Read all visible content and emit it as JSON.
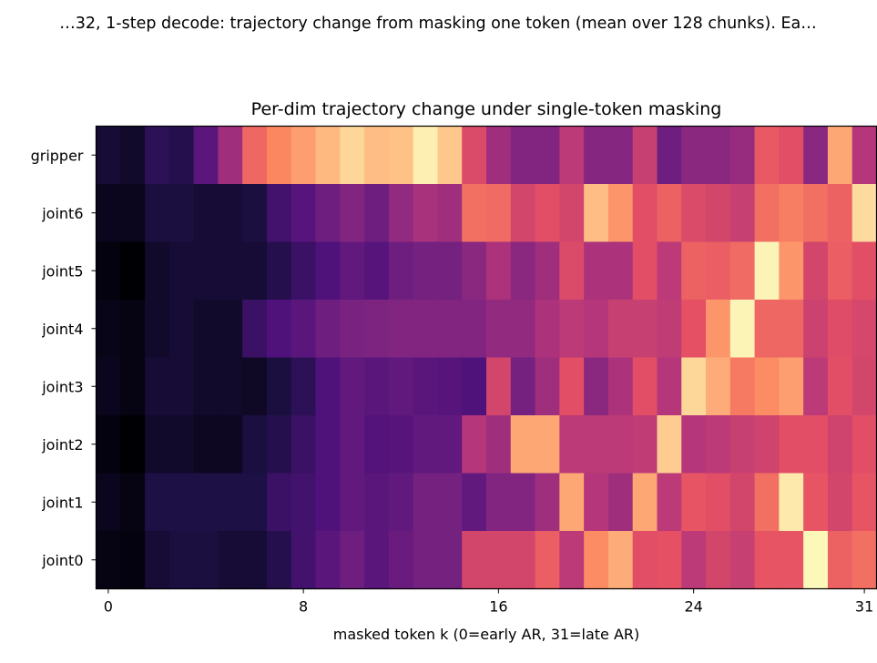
{
  "figure": {
    "suptitle": "…32, 1-step decode: trajectory change from masking one token (mean over 128 chunks). Ea…"
  },
  "chart_data": {
    "type": "heatmap",
    "title": "Per-dim trajectory change under single-token masking",
    "xlabel": "masked token k (0=early AR, 31=late AR)",
    "ylabel": "",
    "colormap": "magma",
    "value_range": [
      0,
      1
    ],
    "grid": false,
    "legend": "none",
    "x_categories": [
      0,
      1,
      2,
      3,
      4,
      5,
      6,
      7,
      8,
      9,
      10,
      11,
      12,
      13,
      14,
      15,
      16,
      17,
      18,
      19,
      20,
      21,
      22,
      23,
      24,
      25,
      26,
      27,
      28,
      29,
      30,
      31
    ],
    "x_ticks": [
      0,
      8,
      16,
      24,
      31
    ],
    "x_tick_labels": [
      "0",
      "8",
      "16",
      "24",
      "31"
    ],
    "y_categories": [
      "gripper",
      "joint6",
      "joint5",
      "joint4",
      "joint3",
      "joint2",
      "joint1",
      "joint0"
    ],
    "values_note": "relative intensity estimated from colour (0 = black, 1 = pale yellow)",
    "values": [
      [
        0.1,
        0.08,
        0.17,
        0.15,
        0.28,
        0.45,
        0.68,
        0.75,
        0.8,
        0.86,
        0.92,
        0.87,
        0.88,
        0.97,
        0.89,
        0.6,
        0.45,
        0.38,
        0.38,
        0.52,
        0.39,
        0.39,
        0.55,
        0.33,
        0.4,
        0.4,
        0.43,
        0.65,
        0.62,
        0.4,
        0.82,
        0.5
      ],
      [
        0.05,
        0.05,
        0.12,
        0.12,
        0.1,
        0.1,
        0.12,
        0.22,
        0.27,
        0.33,
        0.38,
        0.33,
        0.42,
        0.47,
        0.45,
        0.7,
        0.69,
        0.58,
        0.62,
        0.58,
        0.87,
        0.78,
        0.62,
        0.67,
        0.6,
        0.58,
        0.55,
        0.7,
        0.73,
        0.7,
        0.67,
        0.93
      ],
      [
        0.02,
        0.0,
        0.08,
        0.1,
        0.1,
        0.1,
        0.1,
        0.15,
        0.2,
        0.25,
        0.3,
        0.27,
        0.33,
        0.35,
        0.35,
        0.4,
        0.48,
        0.4,
        0.45,
        0.6,
        0.48,
        0.48,
        0.62,
        0.52,
        0.67,
        0.66,
        0.69,
        0.98,
        0.78,
        0.58,
        0.66,
        0.62
      ],
      [
        0.04,
        0.03,
        0.08,
        0.1,
        0.08,
        0.08,
        0.2,
        0.25,
        0.28,
        0.33,
        0.36,
        0.37,
        0.38,
        0.38,
        0.38,
        0.38,
        0.42,
        0.42,
        0.48,
        0.52,
        0.5,
        0.55,
        0.55,
        0.53,
        0.63,
        0.78,
        0.98,
        0.68,
        0.68,
        0.56,
        0.61,
        0.59
      ],
      [
        0.05,
        0.03,
        0.1,
        0.1,
        0.08,
        0.08,
        0.07,
        0.12,
        0.17,
        0.25,
        0.3,
        0.28,
        0.3,
        0.28,
        0.27,
        0.25,
        0.58,
        0.35,
        0.45,
        0.62,
        0.4,
        0.48,
        0.62,
        0.5,
        0.92,
        0.83,
        0.72,
        0.76,
        0.8,
        0.52,
        0.62,
        0.58
      ],
      [
        0.02,
        0.0,
        0.08,
        0.08,
        0.06,
        0.06,
        0.12,
        0.15,
        0.2,
        0.25,
        0.3,
        0.26,
        0.27,
        0.3,
        0.3,
        0.5,
        0.45,
        0.82,
        0.82,
        0.52,
        0.52,
        0.52,
        0.53,
        0.9,
        0.5,
        0.52,
        0.55,
        0.57,
        0.62,
        0.62,
        0.57,
        0.62
      ],
      [
        0.05,
        0.03,
        0.13,
        0.13,
        0.13,
        0.13,
        0.13,
        0.2,
        0.22,
        0.25,
        0.3,
        0.28,
        0.3,
        0.35,
        0.35,
        0.3,
        0.38,
        0.38,
        0.45,
        0.82,
        0.5,
        0.45,
        0.82,
        0.52,
        0.64,
        0.62,
        0.58,
        0.7,
        0.96,
        0.64,
        0.58,
        0.64
      ],
      [
        0.03,
        0.02,
        0.1,
        0.12,
        0.12,
        0.1,
        0.1,
        0.15,
        0.22,
        0.28,
        0.33,
        0.28,
        0.32,
        0.35,
        0.35,
        0.58,
        0.58,
        0.58,
        0.66,
        0.52,
        0.76,
        0.83,
        0.62,
        0.63,
        0.52,
        0.58,
        0.55,
        0.64,
        0.64,
        0.99,
        0.67,
        0.7
      ]
    ]
  }
}
